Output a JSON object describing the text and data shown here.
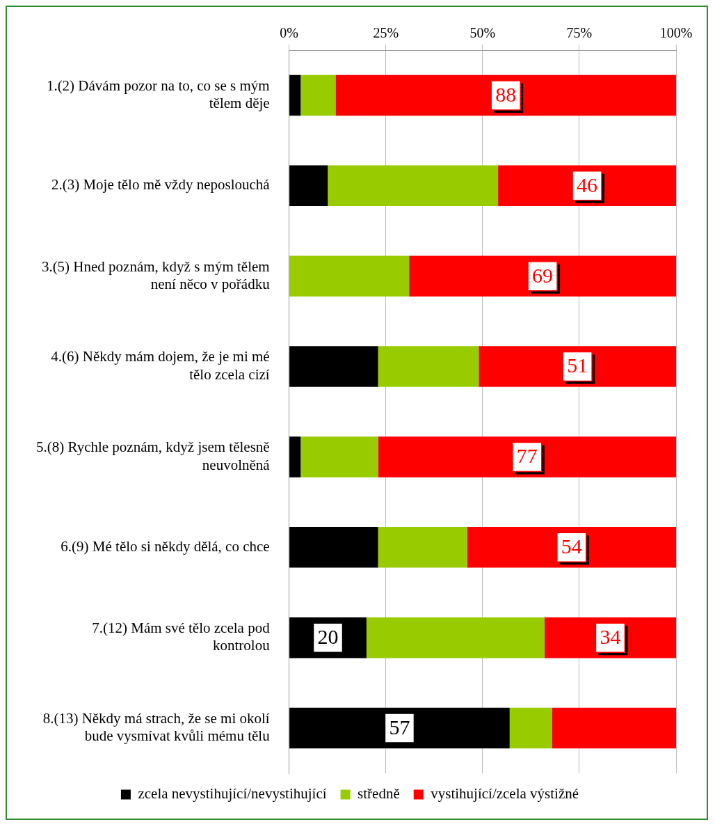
{
  "chart_data": {
    "type": "bar",
    "orientation": "horizontal",
    "stacked": true,
    "categories": [
      "1.(2) Dávám pozor na to, co se s mým tělem děje",
      "2.(3) Moje tělo mě vždy neposlouchá",
      "3.(5) Hned poznám, když s mým tělem není něco v pořádku",
      "4.(6) Někdy mám dojem, že je mi mé tělo zcela cizí",
      "5.(8) Rychle poznám, když jsem tělesně neuvolněná",
      "6.(9) Mé tělo si někdy dělá, co chce",
      "7.(12) Mám své tělo zcela pod kontrolou",
      "8.(13) Někdy má strach, že se mi okolí bude vysmívat kvůli mému tělu"
    ],
    "series": [
      {
        "name": "zcela nevystihující/nevystihující",
        "color": "#000000",
        "values": [
          3,
          10,
          0,
          23,
          3,
          23,
          20,
          57
        ],
        "value_labels": [
          null,
          null,
          null,
          null,
          null,
          null,
          "20",
          "57"
        ]
      },
      {
        "name": "středně",
        "color": "#99cc00",
        "values": [
          9,
          44,
          31,
          26,
          20,
          23,
          46,
          11
        ],
        "value_labels": [
          null,
          null,
          null,
          null,
          null,
          null,
          null,
          null
        ]
      },
      {
        "name": "vystihující/zcela výstižné",
        "color": "#ff0000",
        "values": [
          88,
          46,
          69,
          51,
          77,
          54,
          34,
          32
        ],
        "value_labels": [
          "88",
          "46",
          "69",
          "51",
          "77",
          "54",
          "34",
          null
        ]
      }
    ],
    "xlim": [
      0,
      100
    ],
    "xticks": [
      {
        "value": 0,
        "label": "0%"
      },
      {
        "value": 25,
        "label": "25%"
      },
      {
        "value": 50,
        "label": "50%"
      },
      {
        "value": 75,
        "label": "75%"
      },
      {
        "value": 100,
        "label": "100%"
      }
    ],
    "grid": "x",
    "legend": "bottom"
  }
}
